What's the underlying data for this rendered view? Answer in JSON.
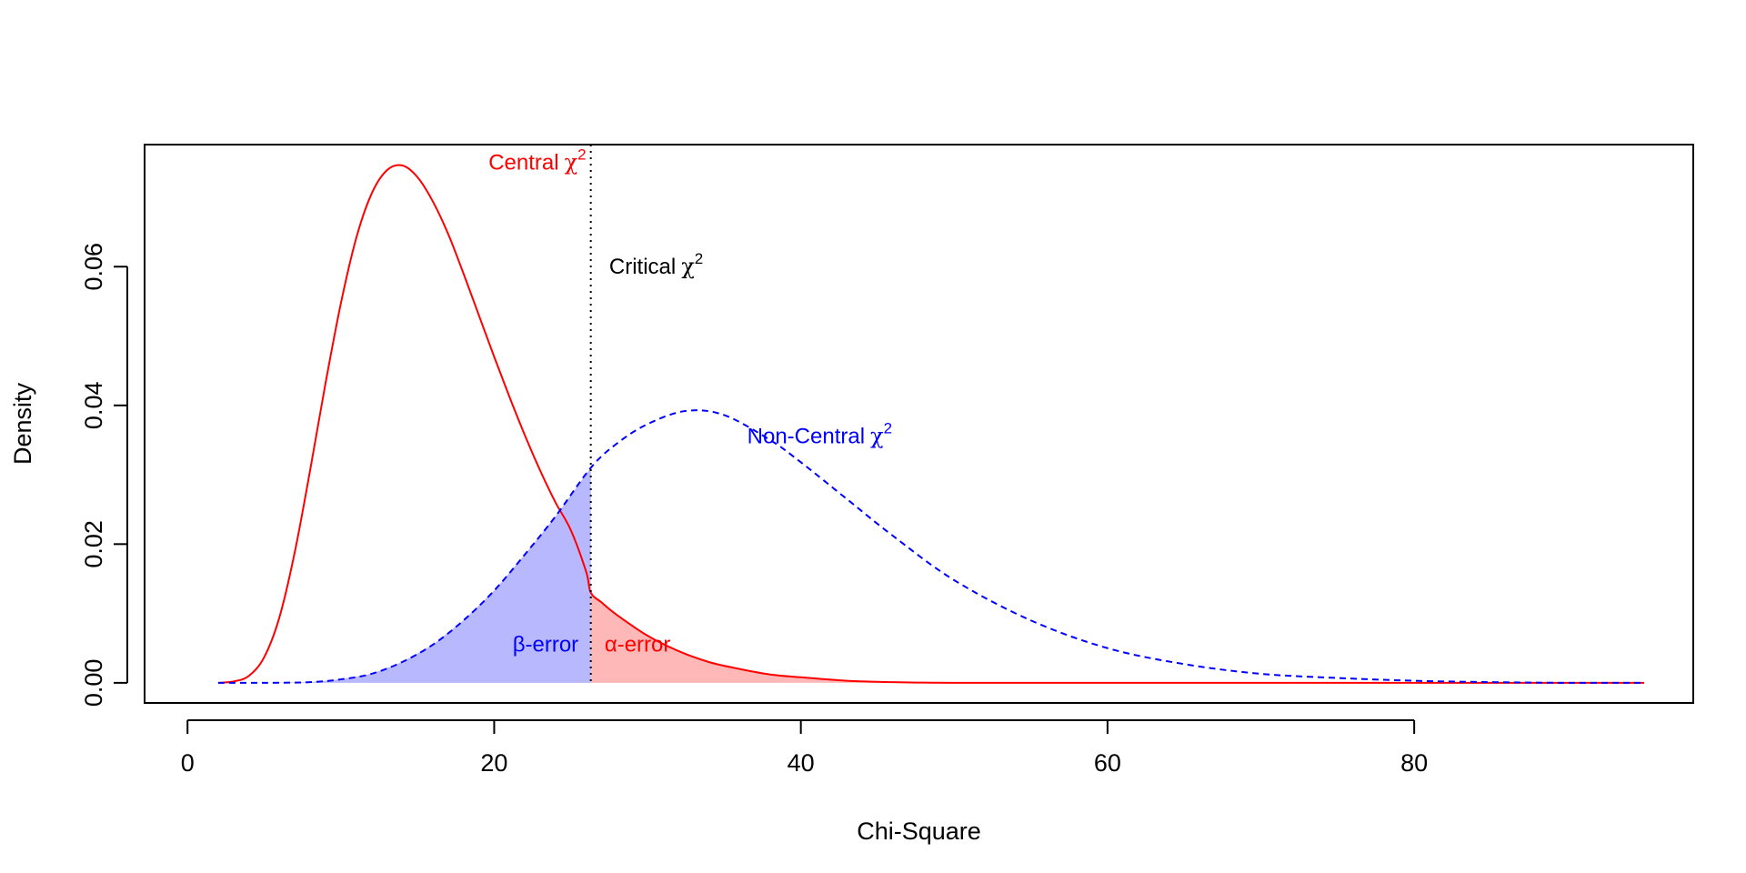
{
  "chart_data": {
    "type": "line",
    "title": "",
    "xlabel": "Chi-Square",
    "ylabel": "Density",
    "xlim": [
      -2.8,
      98.2
    ],
    "ylim": [
      -0.0029,
      0.0776
    ],
    "x_ticks": [
      0,
      20,
      40,
      60,
      80
    ],
    "x_tick_labels": [
      "0",
      "20",
      "40",
      "60",
      "80"
    ],
    "y_ticks": [
      0.0,
      0.02,
      0.04,
      0.06
    ],
    "y_tick_labels": [
      "0.00",
      "0.02",
      "0.04",
      "0.06"
    ],
    "grid": false,
    "x_range": [
      2,
      95
    ],
    "critical_value": 26.3,
    "series": [
      {
        "key": "central",
        "style": "solid",
        "color": "#ff0000",
        "x": [
          2,
          3,
          4,
          5,
          6,
          7,
          8,
          9,
          10,
          11,
          12,
          13,
          14,
          15,
          16,
          17,
          18,
          19,
          20,
          21,
          22,
          23,
          24,
          25,
          26,
          26.3,
          27,
          28,
          30,
          32,
          34,
          36,
          38,
          40,
          43,
          46,
          50,
          60,
          70,
          80,
          95
        ],
        "values": [
          0.0,
          0.0002,
          0.001,
          0.0037,
          0.0095,
          0.0189,
          0.0307,
          0.0432,
          0.0547,
          0.0641,
          0.0705,
          0.0739,
          0.0746,
          0.0729,
          0.0694,
          0.0647,
          0.059,
          0.053,
          0.047,
          0.0412,
          0.0357,
          0.0306,
          0.026,
          0.022,
          0.016,
          0.013,
          0.0116,
          0.0098,
          0.0068,
          0.0046,
          0.003,
          0.002,
          0.0012,
          0.0008,
          0.0003,
          0.0001,
          0.0,
          0.0,
          0.0,
          0.0,
          0.0
        ]
      },
      {
        "key": "noncentral",
        "style": "dashed",
        "color": "#0000ff",
        "x": [
          2,
          5,
          8,
          10,
          12,
          14,
          16,
          18,
          20,
          22,
          24,
          26.3,
          28,
          30,
          32.5,
          35,
          38,
          40,
          43,
          46,
          50,
          55,
          60,
          65,
          70,
          75,
          80,
          85,
          90,
          95
        ],
        "values": [
          0.0,
          0.0,
          0.0001,
          0.0005,
          0.0013,
          0.003,
          0.0055,
          0.009,
          0.0133,
          0.0185,
          0.024,
          0.031,
          0.0345,
          0.0373,
          0.0392,
          0.0386,
          0.035,
          0.0318,
          0.0265,
          0.0212,
          0.0148,
          0.009,
          0.005,
          0.0027,
          0.0013,
          0.0007,
          0.0003,
          0.0001,
          0.0,
          0.0
        ]
      }
    ],
    "shaded_regions": [
      {
        "key": "beta",
        "curve": "noncentral",
        "from": 2,
        "to": 26.3,
        "color": "#b8b8ff"
      },
      {
        "key": "alpha",
        "curve": "central",
        "from": 26.3,
        "to": 95,
        "color": "#ffb8b8"
      }
    ],
    "annotations": [
      {
        "key": "central_label",
        "text": "Central",
        "symbol": "χ",
        "sup": "2",
        "x": 26.0,
        "y": 0.074,
        "anchor": "end",
        "color": "#ff0000"
      },
      {
        "key": "critical_label",
        "text": "Critical",
        "symbol": "χ",
        "sup": "2",
        "x": 27.5,
        "y": 0.059,
        "anchor": "start",
        "color": "#000000"
      },
      {
        "key": "noncentral_label",
        "text": "Non-Central",
        "symbol": "χ",
        "sup": "2",
        "x": 36.5,
        "y": 0.0345,
        "anchor": "start",
        "color": "#0000ff"
      },
      {
        "key": "beta_label",
        "text": "β-error",
        "x": 25.5,
        "y": 0.0045,
        "anchor": "end",
        "color": "#0000ff"
      },
      {
        "key": "alpha_label",
        "text": "α-error",
        "x": 27.2,
        "y": 0.0045,
        "anchor": "start",
        "color": "#ff0000"
      }
    ]
  }
}
